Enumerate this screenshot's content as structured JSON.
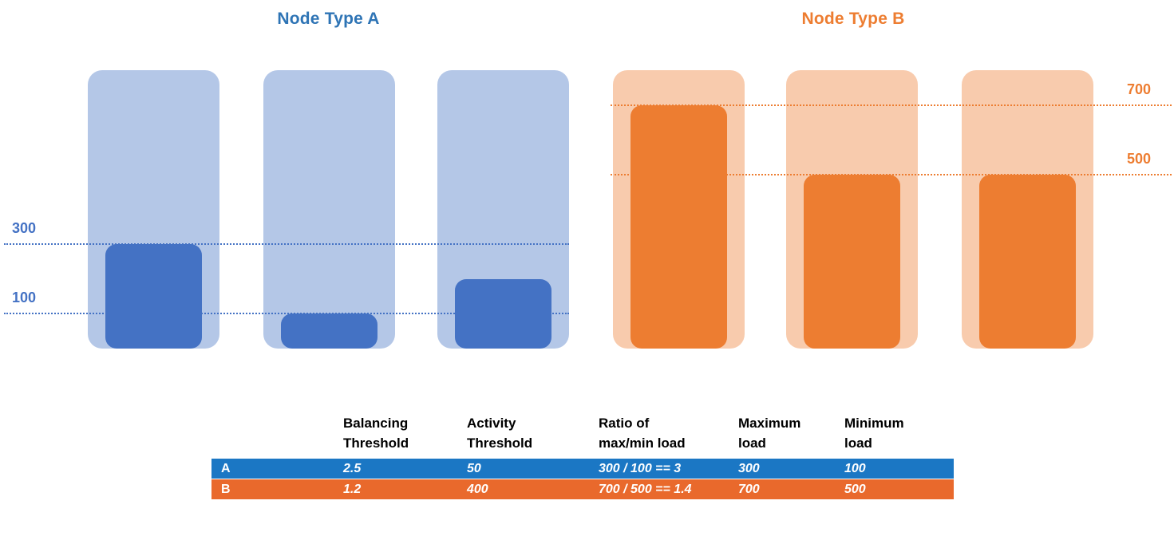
{
  "titles": {
    "group_a": "Node Type A",
    "group_b": "Node Type B"
  },
  "colors": {
    "group_a_title": "#2E74B5",
    "group_b_title": "#ED7D31",
    "row_a_bg": "#1B77C4",
    "row_b_bg": "#E9692C",
    "row_text": "#FFFFFF",
    "header_text": "#000000",
    "background": "#FFFFFF"
  },
  "chart_data": {
    "type": "bar",
    "title": "",
    "ylim": [
      0,
      800
    ],
    "grid": false,
    "legend": false,
    "groups": [
      {
        "name": "Node Type A",
        "bar_color": "#4472C4",
        "container_color": "#B4C7E7",
        "node_capacity": 800,
        "loads": [
          300,
          100,
          200
        ],
        "reference_lines": [
          {
            "value": 300,
            "label": "300",
            "side": "left"
          },
          {
            "value": 100,
            "label": "100",
            "side": "left"
          }
        ]
      },
      {
        "name": "Node Type B",
        "bar_color": "#ED7D31",
        "container_color": "#F8CBAD",
        "node_capacity": 800,
        "loads": [
          700,
          500,
          500
        ],
        "reference_lines": [
          {
            "value": 700,
            "label": "700",
            "side": "right"
          },
          {
            "value": 500,
            "label": "500",
            "side": "right"
          }
        ]
      }
    ]
  },
  "table": {
    "headers": [
      "Balancing\nThreshold",
      "Activity\nThreshold",
      "Ratio of\nmax/min load",
      "Maximum\nload",
      "Minimum\nload"
    ],
    "rows": [
      {
        "label": "A",
        "values": [
          "2.5",
          "50",
          "300 / 100 == 3",
          "300",
          "100"
        ]
      },
      {
        "label": "B",
        "values": [
          "1.2",
          "400",
          "700 / 500 == 1.4",
          "700",
          "500"
        ]
      }
    ]
  }
}
